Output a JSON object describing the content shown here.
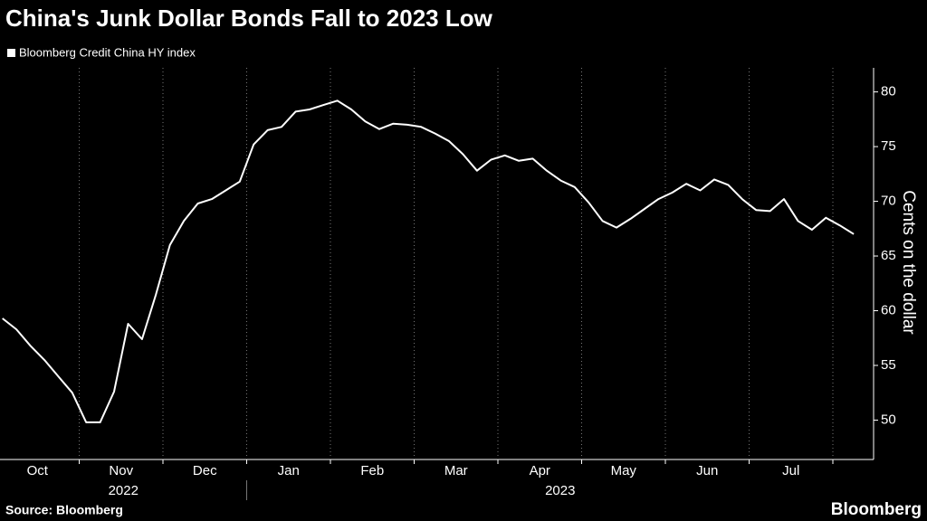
{
  "chart_data": {
    "type": "line",
    "title": "China's Junk Dollar Bonds Fall to 2023 Low",
    "series": [
      {
        "name": "Bloomberg Credit China HY index",
        "color": "#ffffff"
      }
    ],
    "categories": [
      {
        "month": "Oct",
        "year": "2022"
      },
      {
        "month": "Nov",
        "year": "2022"
      },
      {
        "month": "Dec",
        "year": "2022"
      },
      {
        "month": "Jan",
        "year": "2023"
      },
      {
        "month": "Feb",
        "year": "2023"
      },
      {
        "month": "Mar",
        "year": "2023"
      },
      {
        "month": "Apr",
        "year": "2023"
      },
      {
        "month": "May",
        "year": "2023"
      },
      {
        "month": "Jun",
        "year": "2023"
      },
      {
        "month": "Jul",
        "year": "2023"
      },
      {
        "month": null,
        "year": "2023"
      }
    ],
    "values": [
      [
        59.3,
        58.3,
        56.8,
        55.5,
        54.0,
        52.5
      ],
      [
        49.8,
        49.8,
        52.6,
        58.8,
        57.4,
        61.5
      ],
      [
        66.0,
        68.2,
        69.8,
        70.2,
        71.0,
        71.8
      ],
      [
        75.2,
        76.5,
        76.8,
        78.2,
        78.4,
        78.8
      ],
      [
        79.2,
        78.4,
        77.3,
        76.6,
        77.1,
        77.0
      ],
      [
        76.8,
        76.2,
        75.5,
        74.3,
        72.8,
        73.8
      ],
      [
        74.2,
        73.7,
        73.9,
        72.8,
        71.9,
        71.3
      ],
      [
        69.9,
        68.2,
        67.6,
        68.4,
        69.3,
        70.2
      ],
      [
        70.8,
        71.6,
        71.0,
        72.0,
        71.5,
        70.2
      ],
      [
        69.2,
        69.1,
        70.2,
        68.2,
        67.4,
        68.5
      ],
      [
        67.8,
        67.0
      ]
    ],
    "y_axis_label": "Cents on the dollar",
    "ylim": [
      46.4,
      82.2
    ],
    "yticks": [
      50,
      55,
      60,
      65,
      70,
      75,
      80
    ],
    "source": "Source: Bloomberg",
    "brand": "Bloomberg"
  }
}
